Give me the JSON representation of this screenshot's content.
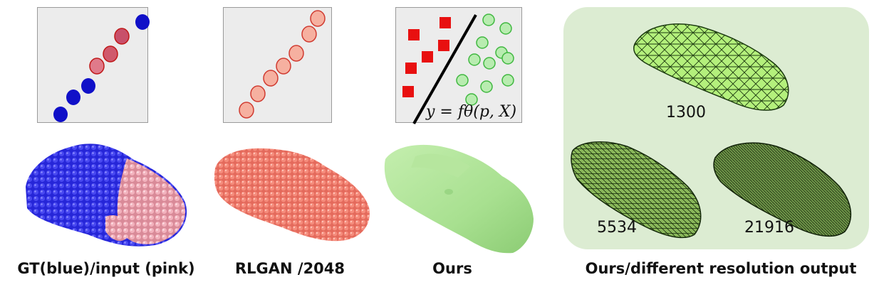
{
  "captions": {
    "gt": "GT(blue)/input (pink)",
    "rlgan": "RLGAN /2048",
    "ours": "Ours",
    "multires": "Ours/different resolution output"
  },
  "formula": "y = fθ(p, X)",
  "resolutions": [
    "1300",
    "5534",
    "21916"
  ],
  "colors": {
    "gt_blue": "#1010c8",
    "input_pink": "#e8a0a8",
    "rlgan_salmon": "#f08070",
    "ours_green": "#a8e090",
    "mesh_green": "#b4f07c",
    "panel_bg": "#ececec",
    "box_bg": "#dcecd2"
  }
}
